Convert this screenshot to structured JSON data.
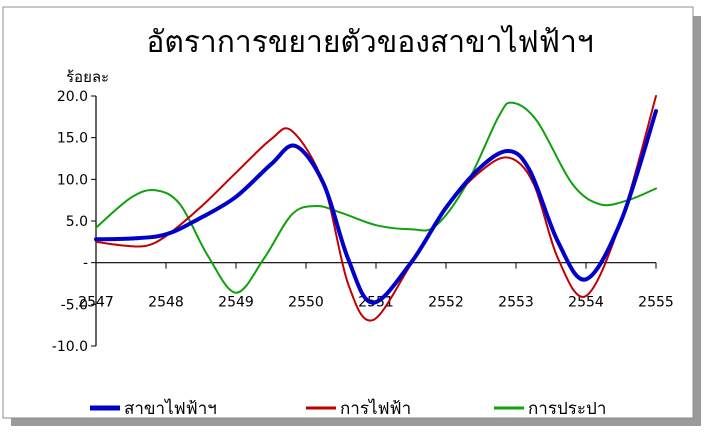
{
  "chart_data": {
    "type": "line",
    "title": "อัตราการขยายตัวของสาขาไฟฟ้าฯ",
    "unit_label": "ร้อยละ",
    "x": [
      "2547",
      "2548",
      "2549",
      "2550",
      "2551",
      "2552",
      "2553",
      "2554",
      "2555"
    ],
    "ylim": [
      -10,
      20
    ],
    "yticks": [
      -10,
      -5,
      0,
      5,
      10,
      15,
      20
    ],
    "ytick_labels": [
      "-10.0",
      "-5.0",
      "-",
      "5.0",
      "10.0",
      "15.0",
      "20.0"
    ],
    "grid": false,
    "legend_position": "bottom",
    "series": [
      {
        "name": "สาขาไฟฟ้าฯ",
        "color": "#0000c8",
        "width": 4,
        "points": [
          [
            2547,
            2.8
          ],
          [
            2547.5,
            2.9
          ],
          [
            2548,
            3.4
          ],
          [
            2548.5,
            5.4
          ],
          [
            2549,
            7.9
          ],
          [
            2549.5,
            11.8
          ],
          [
            2549.85,
            14.0
          ],
          [
            2550.25,
            9.5
          ],
          [
            2550.6,
            0.5
          ],
          [
            2550.95,
            -4.8
          ],
          [
            2551.5,
            0.0
          ],
          [
            2552,
            6.6
          ],
          [
            2552.5,
            11.5
          ],
          [
            2552.9,
            13.4
          ],
          [
            2553.2,
            11.0
          ],
          [
            2553.6,
            2.5
          ],
          [
            2554,
            -2.0
          ],
          [
            2554.5,
            5.0
          ],
          [
            2555,
            18.2
          ]
        ]
      },
      {
        "name": "การไฟฟ้า",
        "color": "#c00000",
        "width": 2,
        "points": [
          [
            2547,
            2.5
          ],
          [
            2547.35,
            2.1
          ],
          [
            2547.7,
            2.0
          ],
          [
            2548,
            3.2
          ],
          [
            2548.5,
            6.7
          ],
          [
            2549,
            10.8
          ],
          [
            2549.5,
            14.8
          ],
          [
            2549.8,
            15.8
          ],
          [
            2550.25,
            9.5
          ],
          [
            2550.6,
            -2.5
          ],
          [
            2550.95,
            -6.9
          ],
          [
            2551.5,
            -0.2
          ],
          [
            2552,
            6.5
          ],
          [
            2552.5,
            11.0
          ],
          [
            2552.9,
            12.6
          ],
          [
            2553.25,
            9.5
          ],
          [
            2553.6,
            0.5
          ],
          [
            2554,
            -4.0
          ],
          [
            2554.5,
            5.0
          ],
          [
            2555,
            20.0
          ]
        ]
      },
      {
        "name": "การประปา",
        "color": "#10a010",
        "width": 2,
        "points": [
          [
            2547,
            4.2
          ],
          [
            2547.5,
            7.8
          ],
          [
            2547.85,
            8.7
          ],
          [
            2548.2,
            7.0
          ],
          [
            2548.6,
            0.8
          ],
          [
            2549,
            -3.6
          ],
          [
            2549.4,
            0.5
          ],
          [
            2549.8,
            5.8
          ],
          [
            2550.15,
            6.8
          ],
          [
            2550.5,
            6.0
          ],
          [
            2551,
            4.5
          ],
          [
            2551.5,
            4.0
          ],
          [
            2551.85,
            4.4
          ],
          [
            2552.3,
            9.5
          ],
          [
            2552.75,
            17.5
          ],
          [
            2552.95,
            19.2
          ],
          [
            2553.3,
            17.0
          ],
          [
            2553.8,
            9.5
          ],
          [
            2554.2,
            7.0
          ],
          [
            2554.6,
            7.5
          ],
          [
            2555,
            8.9
          ]
        ]
      }
    ]
  }
}
